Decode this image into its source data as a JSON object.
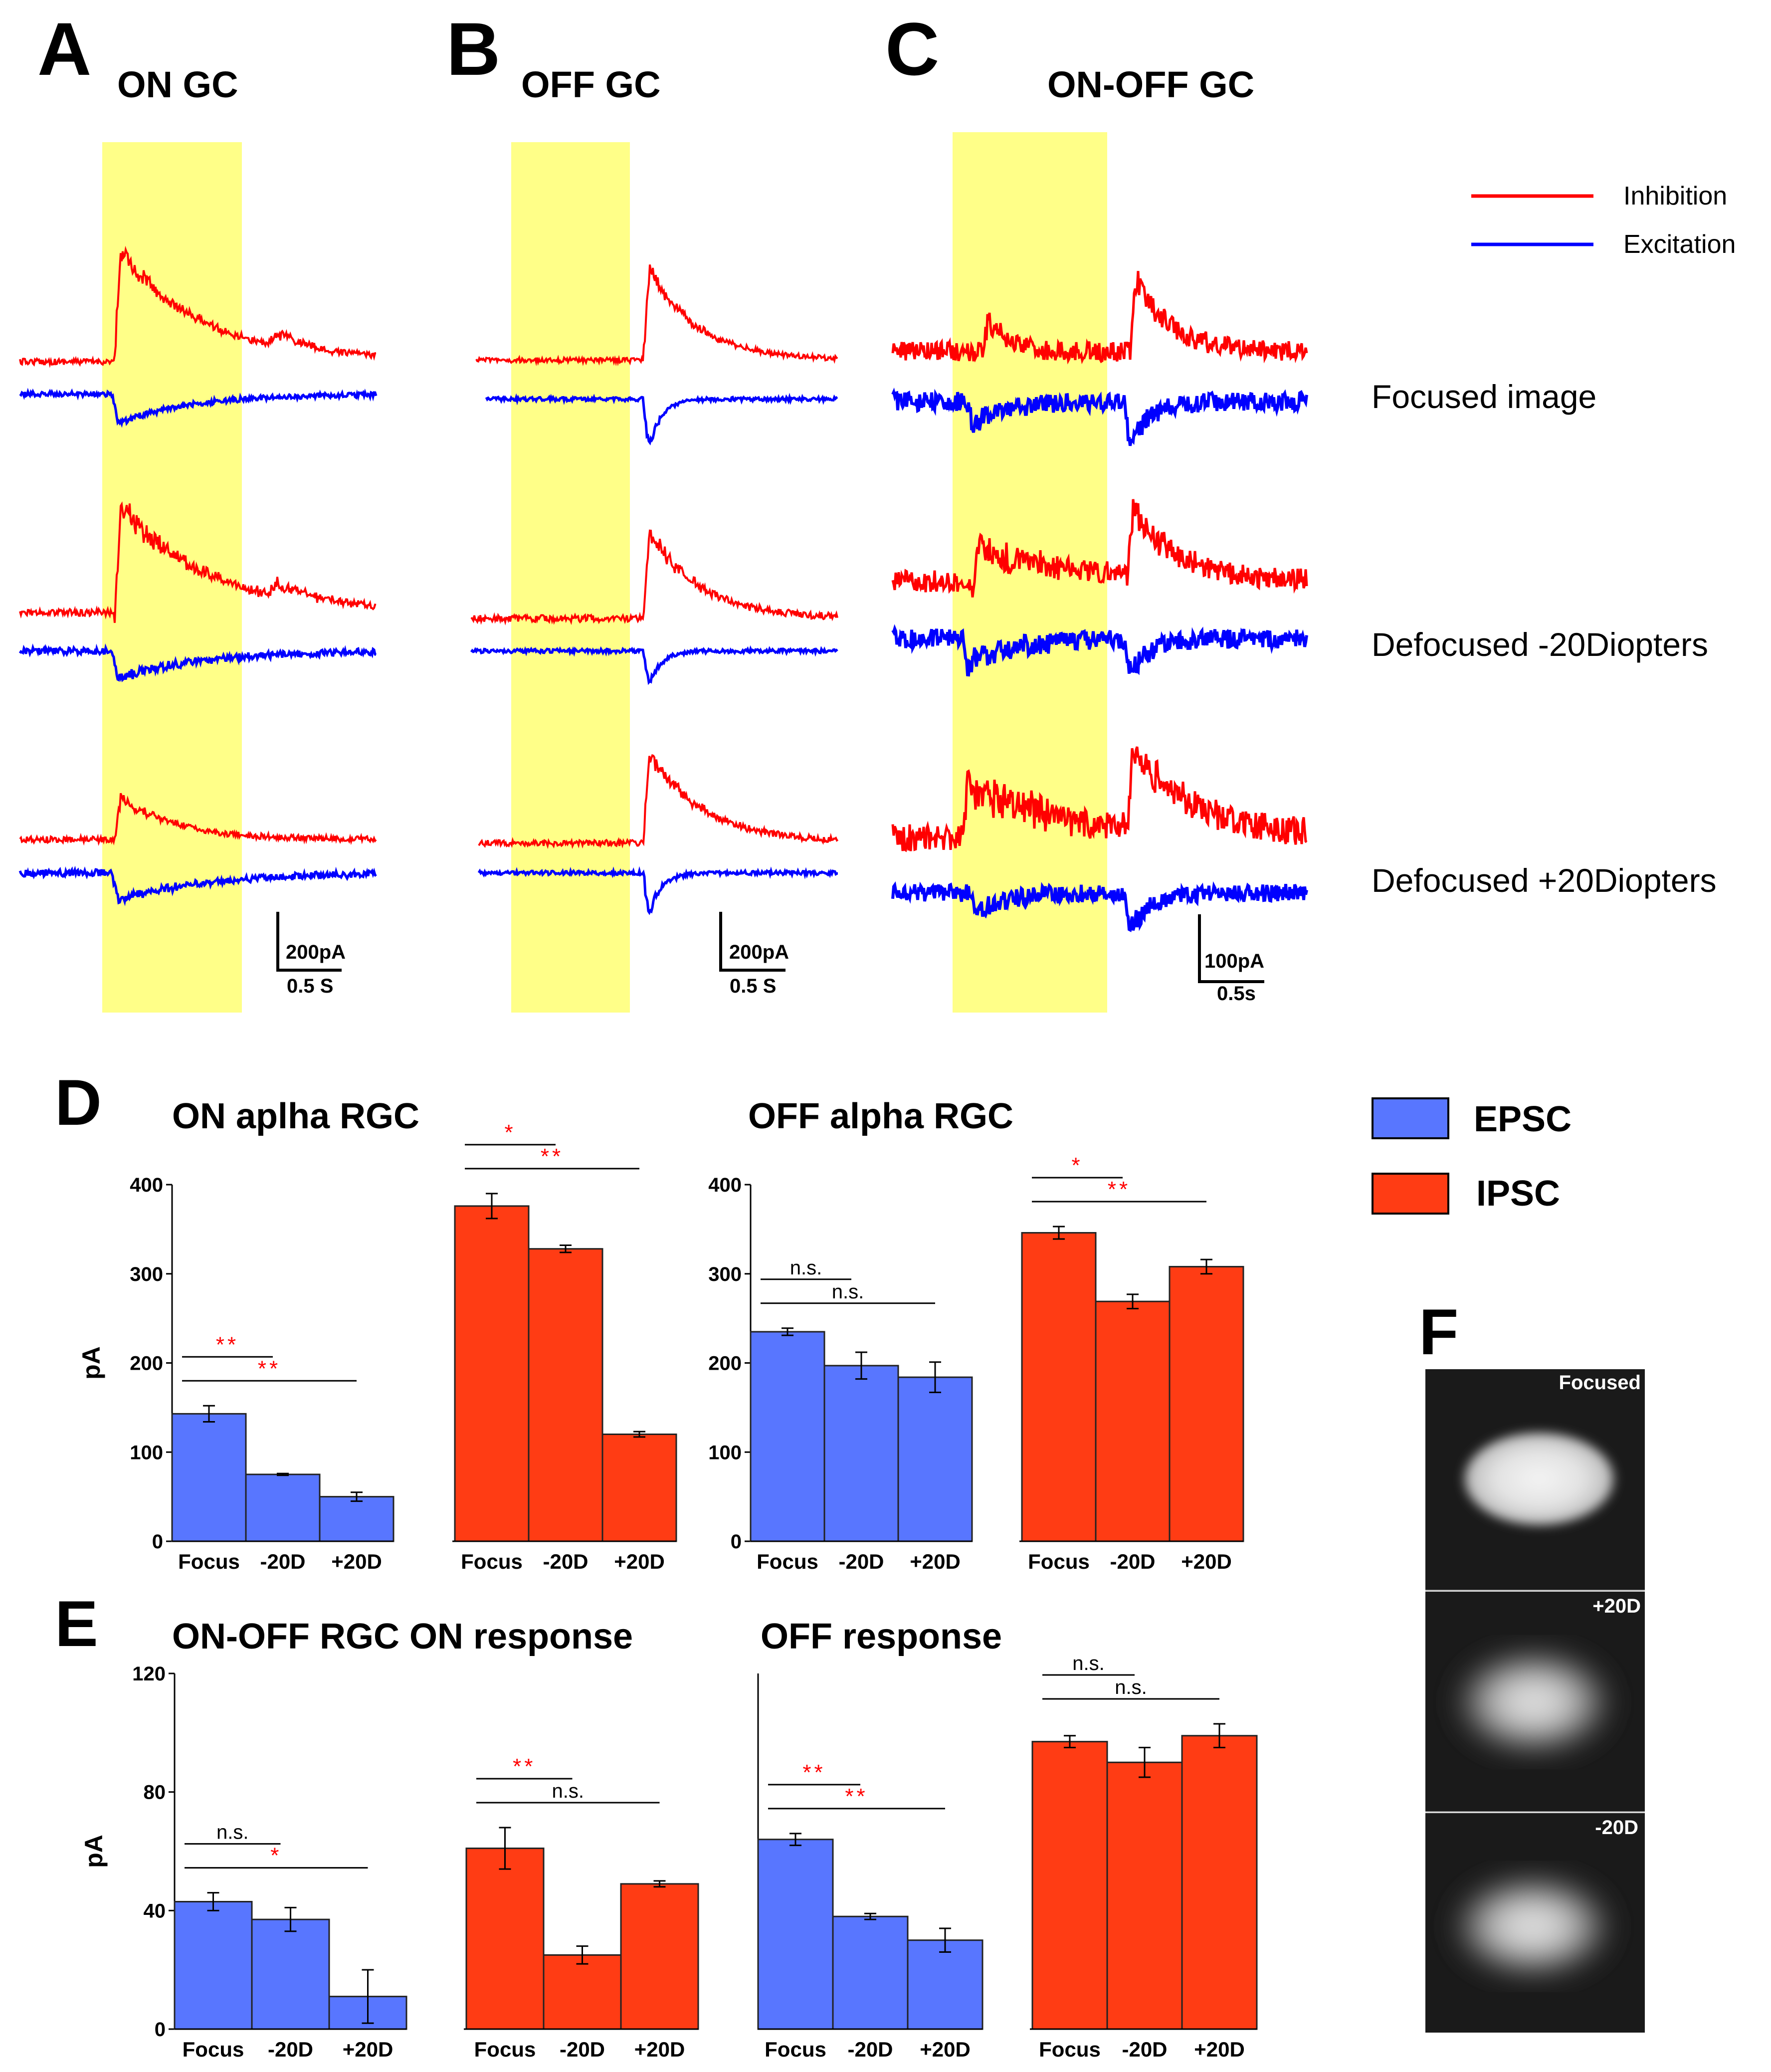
{
  "panels": {
    "A": {
      "letter": "A",
      "title": "ON GC",
      "scale_y": "200pA",
      "scale_x": "0.5 S"
    },
    "B": {
      "letter": "B",
      "title": "OFF GC",
      "scale_y": "200pA",
      "scale_x": "0.5 S"
    },
    "C": {
      "letter": "C",
      "title": "ON-OFF GC",
      "scale_y": "100pA",
      "scale_x": "0.5s"
    },
    "D": {
      "letter": "D"
    },
    "E": {
      "letter": "E"
    },
    "F": {
      "letter": "F"
    }
  },
  "trace_legend": [
    {
      "label": "Inhibition",
      "color": "#ff0000"
    },
    {
      "label": "Excitation",
      "color": "#0000ff"
    }
  ],
  "conditions": [
    "Focused image",
    "Defocused -20Diopters",
    "Defocused +20Diopters"
  ],
  "bar_legend": [
    {
      "label": "EPSC",
      "color": "#5876ff"
    },
    {
      "label": "IPSC",
      "color": "#ff3c14"
    }
  ],
  "colors": {
    "stimulus": "#ffff88",
    "epsc": "#5876ff",
    "ipsc": "#ff3c14",
    "sig": "#ff0000"
  },
  "images_F": [
    "Focused",
    "+20D",
    "-20D"
  ],
  "chart_data": [
    {
      "id": "D-left",
      "type": "bar",
      "title": "ON aplha RGC",
      "ylabel": "pA",
      "ylim": [
        0,
        400
      ],
      "yticks": [
        0,
        100,
        200,
        300,
        400
      ],
      "groups": [
        {
          "name": "EPSC",
          "categories": [
            "Focus",
            "-20D",
            "+20D"
          ],
          "values": [
            143,
            75,
            50
          ],
          "errors": [
            9,
            1,
            5
          ],
          "sig": [
            {
              "from": 0,
              "to": 1,
              "label": "**",
              "red": true
            },
            {
              "from": 0,
              "to": 2,
              "label": "**",
              "red": true
            }
          ]
        },
        {
          "name": "IPSC",
          "categories": [
            "Focus",
            "-20D",
            "+20D"
          ],
          "values": [
            376,
            328,
            120
          ],
          "errors": [
            14,
            4,
            3
          ],
          "sig": [
            {
              "from": 0,
              "to": 1,
              "label": "*",
              "red": true
            },
            {
              "from": 0,
              "to": 2,
              "label": "**",
              "red": true
            }
          ]
        }
      ]
    },
    {
      "id": "D-right",
      "type": "bar",
      "title": "OFF alpha RGC",
      "ylabel": "",
      "ylim": [
        0,
        400
      ],
      "yticks": [
        0,
        100,
        200,
        300,
        400
      ],
      "groups": [
        {
          "name": "EPSC",
          "categories": [
            "Focus",
            "-20D",
            "+20D"
          ],
          "values": [
            235,
            197,
            184
          ],
          "errors": [
            4,
            15,
            17
          ],
          "sig": [
            {
              "from": 0,
              "to": 1,
              "label": "n.s.",
              "red": false
            },
            {
              "from": 0,
              "to": 2,
              "label": "n.s.",
              "red": false
            }
          ]
        },
        {
          "name": "IPSC",
          "categories": [
            "Focus",
            "-20D",
            "+20D"
          ],
          "values": [
            346,
            269,
            308
          ],
          "errors": [
            7,
            8,
            8
          ],
          "sig": [
            {
              "from": 0,
              "to": 1,
              "label": "*",
              "red": true
            },
            {
              "from": 0,
              "to": 2,
              "label": "**",
              "red": true
            }
          ]
        }
      ]
    },
    {
      "id": "E-left",
      "type": "bar",
      "title": "ON-OFF RGC ON response",
      "ylabel": "pA",
      "ylim": [
        0,
        120
      ],
      "yticks": [
        0,
        40,
        80,
        120
      ],
      "groups": [
        {
          "name": "EPSC",
          "categories": [
            "Focus",
            "-20D",
            "+20D"
          ],
          "values": [
            43,
            37,
            11
          ],
          "errors": [
            3,
            4,
            9
          ],
          "sig": [
            {
              "from": 0,
              "to": 1,
              "label": "n.s.",
              "red": false
            },
            {
              "from": 0,
              "to": 2,
              "label": "*",
              "red": true
            }
          ]
        },
        {
          "name": "IPSC",
          "categories": [
            "Focus",
            "-20D",
            "+20D"
          ],
          "values": [
            61,
            25,
            49
          ],
          "errors": [
            7,
            3,
            1
          ],
          "sig": [
            {
              "from": 0,
              "to": 1,
              "label": "**",
              "red": true
            },
            {
              "from": 0,
              "to": 2,
              "label": "n.s.",
              "red": false
            }
          ]
        }
      ]
    },
    {
      "id": "E-right",
      "type": "bar",
      "title": "OFF response",
      "ylabel": "",
      "ylim": [
        0,
        120
      ],
      "yticks": [],
      "groups": [
        {
          "name": "EPSC",
          "categories": [
            "Focus",
            "-20D",
            "+20D"
          ],
          "values": [
            64,
            38,
            30
          ],
          "errors": [
            2,
            1,
            4
          ],
          "sig": [
            {
              "from": 0,
              "to": 1,
              "label": "**",
              "red": true
            },
            {
              "from": 0,
              "to": 2,
              "label": "**",
              "red": true
            }
          ]
        },
        {
          "name": "IPSC",
          "categories": [
            "Focus",
            "-20D",
            "+20D"
          ],
          "values": [
            97,
            90,
            99
          ],
          "errors": [
            2,
            5,
            4
          ],
          "sig": [
            {
              "from": 0,
              "to": 1,
              "label": "n.s.",
              "red": false
            },
            {
              "from": 0,
              "to": 2,
              "label": "n.s.",
              "red": false
            }
          ]
        }
      ]
    }
  ]
}
